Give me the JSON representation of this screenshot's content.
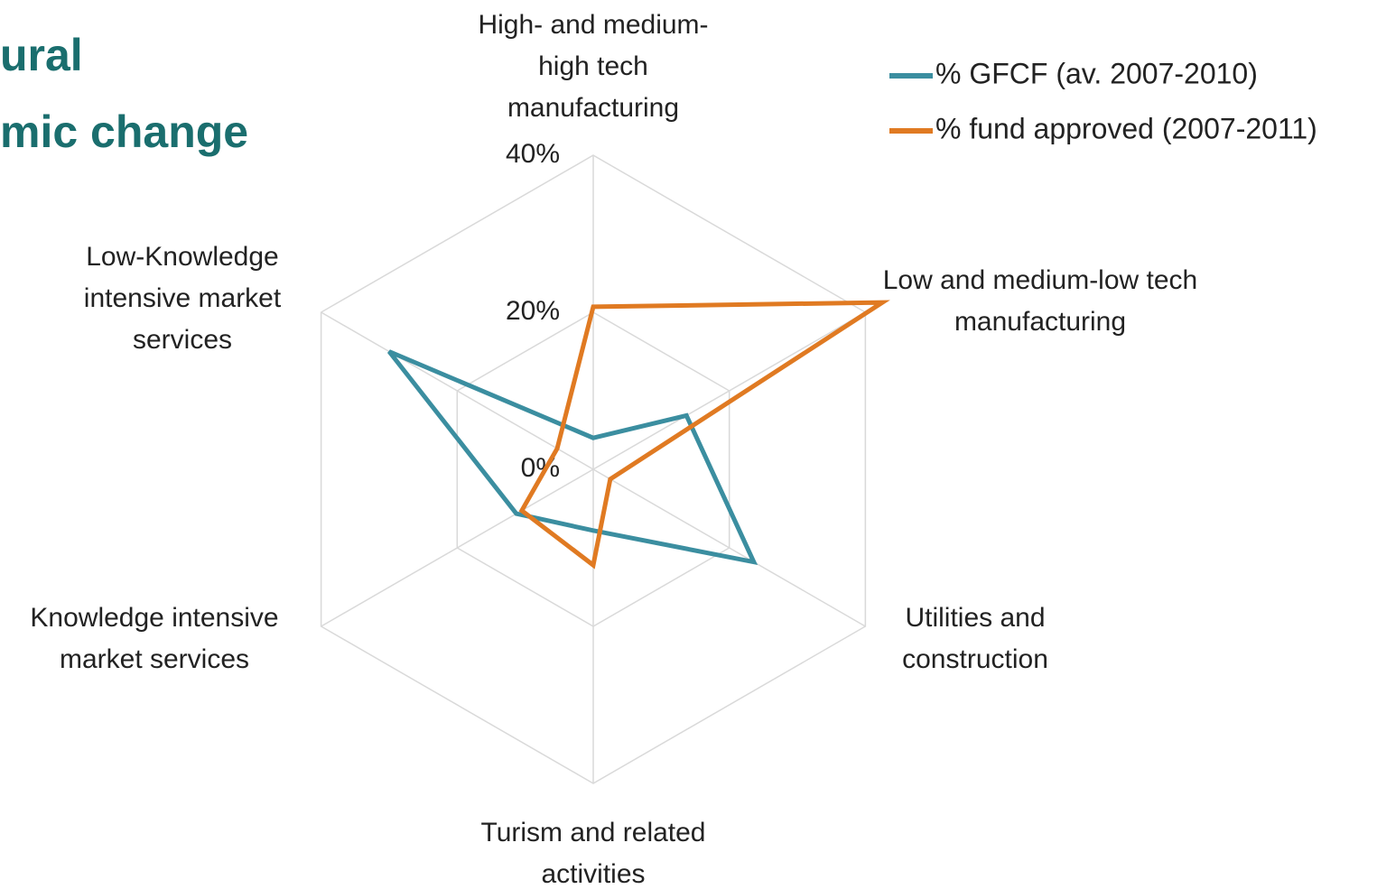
{
  "chart_data": {
    "type": "radar",
    "title_lines": [
      "ural",
      "mic  change"
    ],
    "categories": [
      "High- and medium-high tech manufacturing",
      "Low and medium-low tech manufacturing",
      "Utilities and construction",
      "Turism and related activities",
      "Knowledge intensive market services",
      "Low-Knowledge intensive market services"
    ],
    "series": [
      {
        "name": "% GFCF (av. 2007-2010)",
        "color": "#3b8ea0",
        "values": [
          4,
          13.7,
          23.6,
          7.8,
          11.3,
          30
        ]
      },
      {
        "name": "% fund approved (2007-2011)",
        "color": "#e07a22",
        "values": [
          20.7,
          42.5,
          2.5,
          12.2,
          10.5,
          5.3
        ]
      }
    ],
    "ylim": [
      0,
      40
    ],
    "yticks": [
      {
        "value": 0,
        "label": "0%"
      },
      {
        "value": 20,
        "label": "20%"
      },
      {
        "value": 40,
        "label": "40%"
      }
    ],
    "grid": true,
    "legend": "upper right"
  }
}
